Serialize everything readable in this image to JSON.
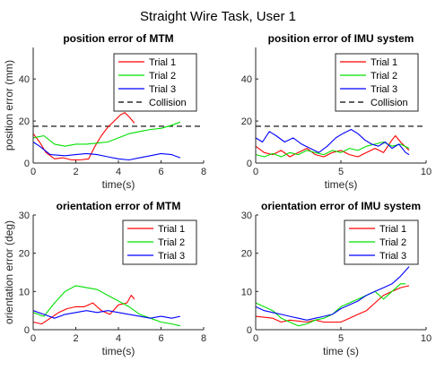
{
  "figure_title": "Straight Wire Task, User 1",
  "colors": {
    "trial1": "#ff0000",
    "trial2": "#00e000",
    "trial3": "#0000ff",
    "collision": "#000000",
    "axis": "#262626"
  },
  "chart_data": [
    {
      "type": "line",
      "title": "position error of MTM",
      "xlabel": "time(s)",
      "ylabel": "position error (mm)",
      "xlim": [
        0,
        8
      ],
      "ylim": [
        0,
        55
      ],
      "xticks": [
        "0",
        "2",
        "4",
        "6",
        "8"
      ],
      "yticks": [
        "0",
        "20",
        "40"
      ],
      "legend": "top-right",
      "legend_entries": [
        "Trial 1",
        "Trial 2",
        "Trial 3",
        "Collision"
      ],
      "collision_level": 17.5,
      "series": [
        {
          "name": "Trial 1",
          "color": "#ff0000",
          "points": [
            [
              0,
              14
            ],
            [
              0.3,
              10
            ],
            [
              0.6,
              5
            ],
            [
              1,
              2
            ],
            [
              1.4,
              2.5
            ],
            [
              1.8,
              1.5
            ],
            [
              2.2,
              1.5
            ],
            [
              2.6,
              2
            ],
            [
              2.9,
              8
            ],
            [
              3.2,
              13
            ],
            [
              3.5,
              17
            ],
            [
              3.8,
              20
            ],
            [
              4.1,
              23
            ],
            [
              4.3,
              24
            ],
            [
              4.5,
              22
            ],
            [
              4.75,
              19
            ]
          ]
        },
        {
          "name": "Trial 2",
          "color": "#00e000",
          "points": [
            [
              0,
              12
            ],
            [
              0.5,
              13
            ],
            [
              1,
              9
            ],
            [
              1.5,
              8
            ],
            [
              2,
              9
            ],
            [
              2.5,
              9
            ],
            [
              3,
              9.5
            ],
            [
              3.5,
              10
            ],
            [
              4,
              12
            ],
            [
              4.5,
              14
            ],
            [
              5,
              15
            ],
            [
              5.5,
              16
            ],
            [
              6,
              16.5
            ],
            [
              6.5,
              18
            ],
            [
              6.9,
              19.5
            ]
          ]
        },
        {
          "name": "Trial 3",
          "color": "#0000ff",
          "points": [
            [
              0,
              10
            ],
            [
              0.3,
              8
            ],
            [
              0.8,
              4
            ],
            [
              1.5,
              3.5
            ],
            [
              2,
              4
            ],
            [
              2.5,
              4.5
            ],
            [
              3,
              4
            ],
            [
              3.5,
              3
            ],
            [
              4,
              2
            ],
            [
              4.5,
              1.5
            ],
            [
              5,
              2.5
            ],
            [
              5.5,
              3.5
            ],
            [
              6,
              4.5
            ],
            [
              6.5,
              4
            ],
            [
              6.9,
              2.5
            ]
          ]
        }
      ]
    },
    {
      "type": "line",
      "title": "position error of IMU system",
      "xlabel": "time(s)",
      "ylabel": "",
      "xlim": [
        0,
        10
      ],
      "ylim": [
        0,
        55
      ],
      "xticks": [
        "0",
        "5",
        "10"
      ],
      "yticks": [
        "0",
        "20",
        "40"
      ],
      "legend": "top-right",
      "legend_entries": [
        "Trial 1",
        "Trial 2",
        "Trial 3",
        "Collision"
      ],
      "collision_level": 17.5,
      "series": [
        {
          "name": "Trial 1",
          "color": "#ff0000",
          "points": [
            [
              0,
              8
            ],
            [
              0.5,
              5
            ],
            [
              1,
              4
            ],
            [
              1.5,
              6
            ],
            [
              2,
              3
            ],
            [
              2.5,
              5
            ],
            [
              3,
              7
            ],
            [
              3.5,
              4
            ],
            [
              4,
              3
            ],
            [
              4.5,
              5
            ],
            [
              5,
              6
            ],
            [
              5.5,
              4
            ],
            [
              6,
              3
            ],
            [
              6.5,
              5
            ],
            [
              7,
              7
            ],
            [
              7.5,
              5
            ],
            [
              8,
              11
            ],
            [
              8.2,
              13
            ],
            [
              8.5,
              10
            ],
            [
              9,
              6
            ]
          ]
        },
        {
          "name": "Trial 2",
          "color": "#00e000",
          "points": [
            [
              0,
              4
            ],
            [
              0.5,
              3
            ],
            [
              1,
              4.5
            ],
            [
              1.5,
              3
            ],
            [
              2,
              5
            ],
            [
              2.5,
              4
            ],
            [
              3,
              6
            ],
            [
              3.5,
              5
            ],
            [
              4,
              4
            ],
            [
              4.5,
              6
            ],
            [
              5,
              5
            ],
            [
              5.5,
              7
            ],
            [
              6,
              6
            ],
            [
              6.5,
              8
            ],
            [
              7,
              9
            ],
            [
              7.5,
              10
            ],
            [
              8,
              8
            ],
            [
              8.5,
              9
            ],
            [
              9,
              7
            ]
          ]
        },
        {
          "name": "Trial 3",
          "color": "#0000ff",
          "points": [
            [
              0,
              12
            ],
            [
              0.4,
              10
            ],
            [
              0.8,
              15
            ],
            [
              1.2,
              13
            ],
            [
              1.7,
              10
            ],
            [
              2.2,
              12
            ],
            [
              2.7,
              9
            ],
            [
              3.2,
              7
            ],
            [
              3.7,
              5
            ],
            [
              4.2,
              8
            ],
            [
              4.7,
              12
            ],
            [
              5.1,
              14
            ],
            [
              5.6,
              16
            ],
            [
              6,
              14
            ],
            [
              6.4,
              11
            ],
            [
              6.8,
              9
            ],
            [
              7.2,
              8
            ],
            [
              7.6,
              10
            ],
            [
              8,
              7
            ],
            [
              8.4,
              9
            ],
            [
              8.8,
              5
            ],
            [
              9,
              4
            ]
          ]
        }
      ]
    },
    {
      "type": "line",
      "title": "orientation error of MTM",
      "xlabel": "time(s)",
      "ylabel": "orientation error (deg)",
      "xlim": [
        0,
        8
      ],
      "ylim": [
        0,
        30
      ],
      "xticks": [
        "0",
        "2",
        "4",
        "6",
        "8"
      ],
      "yticks": [
        "0",
        "10",
        "20",
        "30"
      ],
      "legend": "top-right",
      "legend_entries": [
        "Trial 1",
        "Trial 2",
        "Trial 3"
      ],
      "series": [
        {
          "name": "Trial 1",
          "color": "#ff0000",
          "points": [
            [
              0,
              2
            ],
            [
              0.4,
              1.5
            ],
            [
              0.8,
              3
            ],
            [
              1.2,
              4.5
            ],
            [
              1.6,
              5.5
            ],
            [
              2,
              6
            ],
            [
              2.4,
              6
            ],
            [
              2.8,
              7
            ],
            [
              3.2,
              5
            ],
            [
              3.6,
              4
            ],
            [
              4,
              6.5
            ],
            [
              4.4,
              7
            ],
            [
              4.6,
              9
            ],
            [
              4.75,
              8
            ]
          ]
        },
        {
          "name": "Trial 2",
          "color": "#00e000",
          "points": [
            [
              0,
              4.5
            ],
            [
              0.5,
              3.5
            ],
            [
              1,
              7
            ],
            [
              1.5,
              10
            ],
            [
              2,
              11.5
            ],
            [
              2.5,
              11
            ],
            [
              3,
              10.5
            ],
            [
              3.5,
              9
            ],
            [
              4,
              7.5
            ],
            [
              4.5,
              6
            ],
            [
              5,
              4
            ],
            [
              5.5,
              3
            ],
            [
              6,
              2
            ],
            [
              6.5,
              1.5
            ],
            [
              6.9,
              1
            ]
          ]
        },
        {
          "name": "Trial 3",
          "color": "#0000ff",
          "points": [
            [
              0,
              5
            ],
            [
              0.5,
              4
            ],
            [
              1,
              3
            ],
            [
              1.5,
              4
            ],
            [
              2,
              4.5
            ],
            [
              2.5,
              5
            ],
            [
              3,
              4.5
            ],
            [
              3.5,
              5
            ],
            [
              4,
              4.5
            ],
            [
              4.5,
              4
            ],
            [
              5,
              3.5
            ],
            [
              5.5,
              3
            ],
            [
              6,
              3.5
            ],
            [
              6.5,
              3
            ],
            [
              6.9,
              3.5
            ]
          ]
        }
      ]
    },
    {
      "type": "line",
      "title": "orientation error of IMU system",
      "xlabel": "time (s)",
      "ylabel": "",
      "xlim": [
        0,
        10
      ],
      "ylim": [
        0,
        30
      ],
      "xticks": [
        "0",
        "5",
        "10"
      ],
      "yticks": [
        "0",
        "10",
        "20",
        "30"
      ],
      "legend": "top-right",
      "legend_entries": [
        "Trial 1",
        "Trial 2",
        "Trial 3"
      ],
      "series": [
        {
          "name": "Trial 1",
          "color": "#ff0000",
          "points": [
            [
              0,
              3.5
            ],
            [
              1,
              3
            ],
            [
              1.5,
              2
            ],
            [
              2,
              2.5
            ],
            [
              3,
              2
            ],
            [
              3.5,
              2.5
            ],
            [
              4,
              2
            ],
            [
              5,
              2
            ],
            [
              5.5,
              3
            ],
            [
              6,
              4
            ],
            [
              6.5,
              5
            ],
            [
              7,
              7
            ],
            [
              7.5,
              9
            ],
            [
              8,
              10
            ],
            [
              8.5,
              11
            ],
            [
              9,
              11.5
            ]
          ]
        },
        {
          "name": "Trial 2",
          "color": "#00e000",
          "points": [
            [
              0,
              7
            ],
            [
              0.5,
              6
            ],
            [
              1,
              5
            ],
            [
              1.5,
              3
            ],
            [
              2,
              2
            ],
            [
              2.5,
              1
            ],
            [
              3,
              1.5
            ],
            [
              3.5,
              2.5
            ],
            [
              4,
              3
            ],
            [
              4.5,
              4
            ],
            [
              5,
              6
            ],
            [
              5.5,
              7
            ],
            [
              6,
              8
            ],
            [
              6.5,
              9
            ],
            [
              7,
              10
            ],
            [
              7.5,
              8
            ],
            [
              8,
              10
            ],
            [
              8.5,
              12
            ],
            [
              8.8,
              12
            ]
          ]
        },
        {
          "name": "Trial 3",
          "color": "#0000ff",
          "points": [
            [
              0,
              6
            ],
            [
              0.5,
              5
            ],
            [
              1,
              4.5
            ],
            [
              1.5,
              4
            ],
            [
              2,
              3.5
            ],
            [
              2.5,
              3
            ],
            [
              3,
              2.5
            ],
            [
              3.5,
              3
            ],
            [
              4,
              3.5
            ],
            [
              4.5,
              4
            ],
            [
              5,
              5.5
            ],
            [
              5.5,
              6.5
            ],
            [
              6,
              7.5
            ],
            [
              6.5,
              9
            ],
            [
              7,
              10
            ],
            [
              7.5,
              11
            ],
            [
              8,
              12
            ],
            [
              8.5,
              14
            ],
            [
              9,
              16.5
            ]
          ]
        }
      ]
    }
  ]
}
